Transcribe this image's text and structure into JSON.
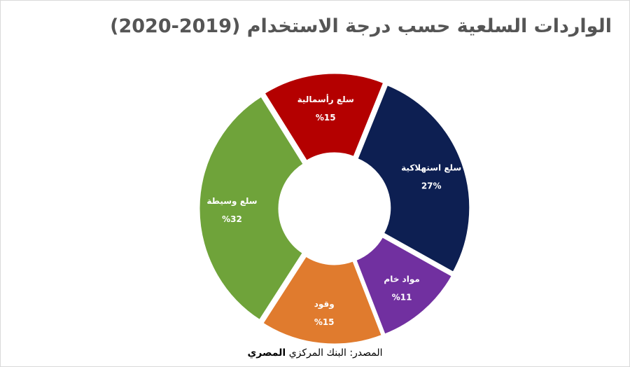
{
  "chart_data": {
    "type": "pie",
    "title": "الواردات السلعية حسب درجة الاستخدام (2019-2020)",
    "categories": [
      "سلع استهلاكية",
      "مواد خام",
      "وقود",
      "سلع وسيطة",
      "سلع رأسمالية"
    ],
    "values": [
      27,
      11,
      15,
      32,
      15
    ],
    "value_labels": [
      "27%",
      "%11",
      "%15",
      "%32",
      "%15"
    ],
    "colors": [
      "#0d1f52",
      "#7130a0",
      "#e07b2e",
      "#6fa33a",
      "#b40000"
    ],
    "donut": true,
    "legend": "none"
  },
  "source": {
    "prefix": "المصدر: البنك المركزي",
    "org": "المصري"
  }
}
